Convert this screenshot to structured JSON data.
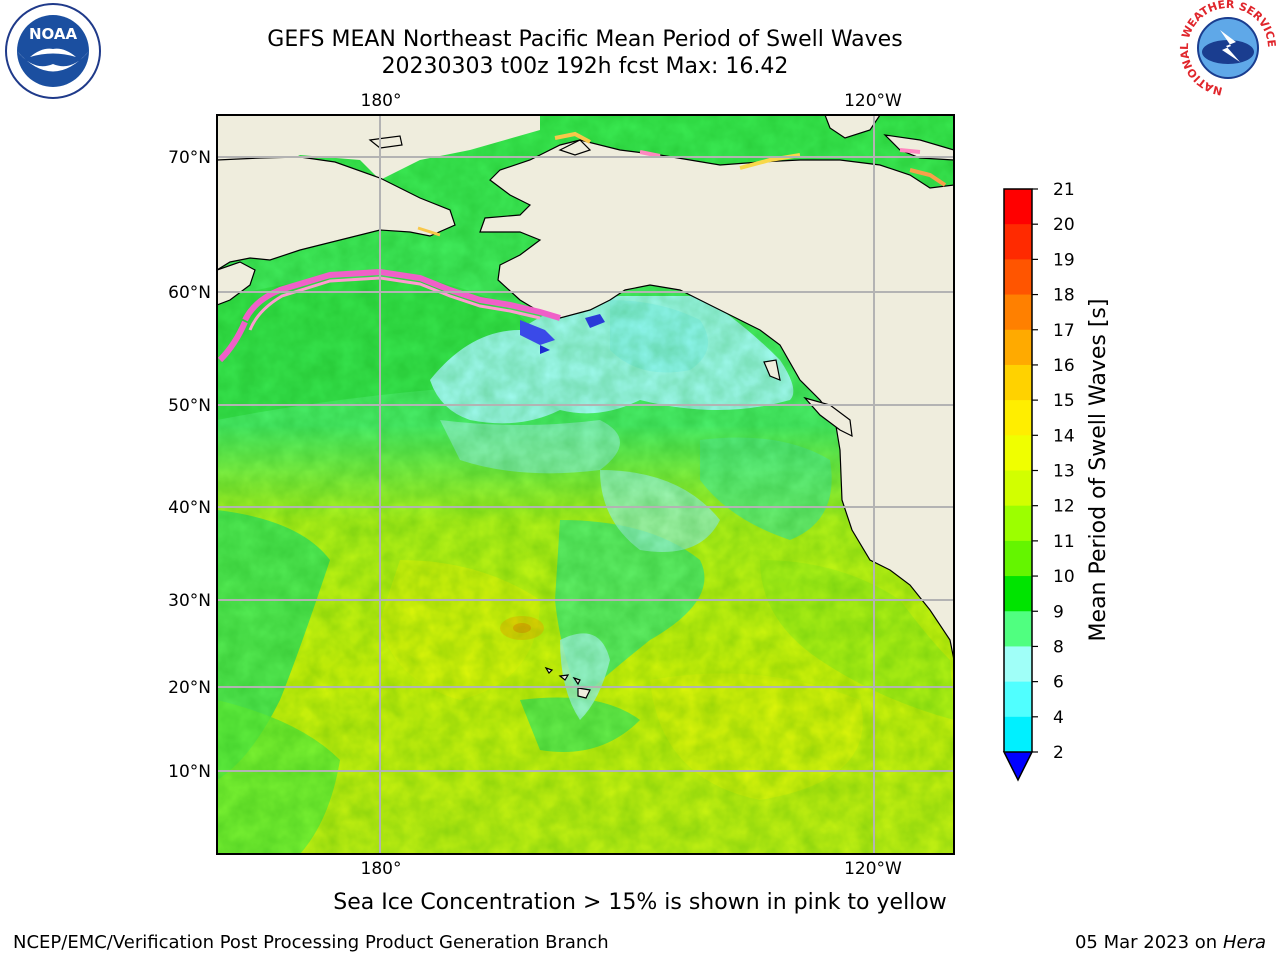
{
  "title_line1": "GEFS MEAN Northeast Pacific Mean Period of Swell Waves",
  "title_line2": "20230303 t00z 192h fcst   Max: 16.42",
  "longitude_labels": [
    "180°",
    "120°W"
  ],
  "latitude_labels": [
    "70°N",
    "60°N",
    "50°N",
    "40°N",
    "30°N",
    "20°N",
    "10°N"
  ],
  "colorbar": {
    "label": "Mean Period of Swell Waves [s]",
    "ticks": [
      "21",
      "20",
      "19",
      "18",
      "17",
      "16",
      "15",
      "14",
      "13",
      "12",
      "11",
      "10",
      "9",
      "8",
      "6",
      "4",
      "2"
    ],
    "colors": [
      "#ff0000",
      "#ff2a00",
      "#ff5500",
      "#ff8000",
      "#ffaa00",
      "#ffd200",
      "#ffee00",
      "#f0ff00",
      "#d2ff00",
      "#9cff00",
      "#64f500",
      "#00e400",
      "#50ff80",
      "#a0fff8",
      "#50ffff",
      "#00f0ff",
      "#00d0ff",
      "#0070ff"
    ],
    "extend_color": "#0000ff"
  },
  "colors": {
    "land": "#efeddd",
    "grid": "#b3b3b3",
    "coast": "#000000"
  },
  "ice_note": "Sea Ice Concentration > 15% is shown in pink to yellow",
  "footer": {
    "left": "NCEP/EMC/Verification Post Processing Product Generation Branch",
    "date": "05 Mar 2023 on",
    "machine": "Hera"
  },
  "logos": {
    "noaa": "NOAA",
    "nws_ring": "NATIONAL WEATHER SERVICE"
  }
}
